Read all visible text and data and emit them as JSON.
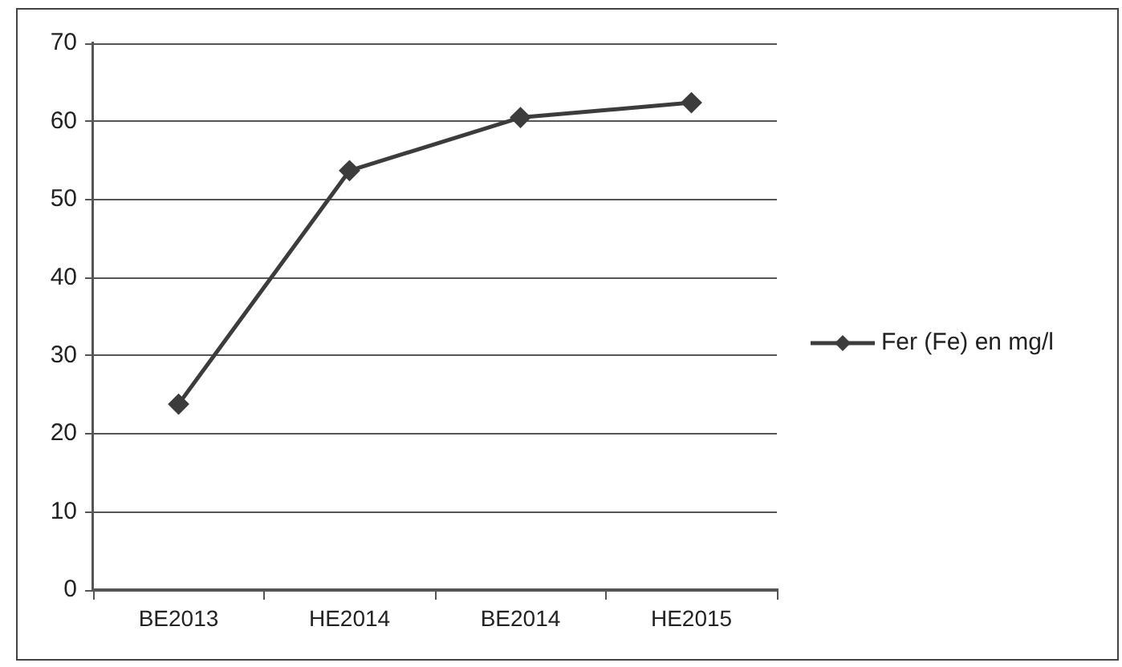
{
  "chart_data": {
    "type": "line",
    "categories": [
      "BE2013",
      "HE2014",
      "BE2014",
      "HE2015"
    ],
    "series": [
      {
        "name": "Fer (Fe) en mg/l",
        "color": "#3c3c3c",
        "values": [
          23.8,
          53.7,
          60.5,
          62.4
        ]
      }
    ],
    "ylim": [
      0,
      70
    ],
    "yticks": [
      0,
      10,
      20,
      30,
      40,
      50,
      60,
      70
    ],
    "grid": "y",
    "legend": "right",
    "marker": "diamond",
    "line_style": "solid"
  }
}
